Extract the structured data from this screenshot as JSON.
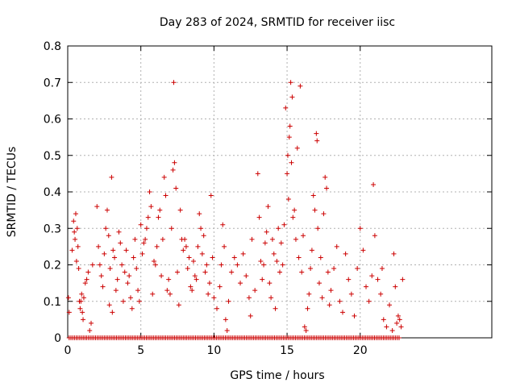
{
  "chart_data": {
    "type": "scatter",
    "title": "Day 283 of 2024, SRMTID for receiver iisc",
    "xlabel": "GPS time / hours",
    "ylabel": "SRMTID / TECUs",
    "xlim": [
      0,
      29
    ],
    "ylim": [
      0,
      0.8
    ],
    "xticks": [
      0,
      5,
      10,
      15,
      20
    ],
    "yticks": [
      0,
      0.1,
      0.2,
      0.3,
      0.4,
      0.5,
      0.6,
      0.7,
      0.8
    ],
    "xtick_labels": [
      "0",
      "5",
      "10",
      "15",
      "20"
    ],
    "ytick_labels": [
      "0",
      "0.1",
      "0.2",
      "0.3",
      "0.4",
      "0.5",
      "0.6",
      "0.7",
      "0.8"
    ],
    "grid": true,
    "marker": "+",
    "series_color": "#cc0000",
    "series": [
      {
        "name": "SRMTID",
        "points": [
          [
            0.05,
            0.11
          ],
          [
            0.1,
            0.07
          ],
          [
            0.3,
            0.24
          ],
          [
            0.4,
            0.32
          ],
          [
            0.45,
            0.29
          ],
          [
            0.5,
            0.27
          ],
          [
            0.55,
            0.34
          ],
          [
            0.6,
            0.21
          ],
          [
            0.65,
            0.3
          ],
          [
            0.7,
            0.25
          ],
          [
            0.75,
            0.19
          ],
          [
            0.8,
            0.1
          ],
          [
            0.85,
            0.08
          ],
          [
            0.9,
            0.1
          ],
          [
            0.95,
            0.12
          ],
          [
            1.0,
            0.07
          ],
          [
            1.05,
            0.05
          ],
          [
            1.1,
            0.11
          ],
          [
            1.2,
            0.15
          ],
          [
            1.3,
            0.16
          ],
          [
            1.4,
            0.18
          ],
          [
            1.5,
            0.02
          ],
          [
            1.6,
            0.04
          ],
          [
            1.7,
            0.2
          ],
          [
            2.0,
            0.36
          ],
          [
            2.1,
            0.25
          ],
          [
            2.2,
            0.2
          ],
          [
            2.3,
            0.17
          ],
          [
            2.4,
            0.14
          ],
          [
            2.5,
            0.23
          ],
          [
            2.6,
            0.3
          ],
          [
            2.7,
            0.35
          ],
          [
            2.8,
            0.28
          ],
          [
            2.85,
            0.09
          ],
          [
            2.9,
            0.19
          ],
          [
            3.0,
            0.44
          ],
          [
            3.05,
            0.07
          ],
          [
            3.1,
            0.24
          ],
          [
            3.2,
            0.22
          ],
          [
            3.3,
            0.13
          ],
          [
            3.4,
            0.16
          ],
          [
            3.5,
            0.29
          ],
          [
            3.6,
            0.26
          ],
          [
            3.7,
            0.2
          ],
          [
            3.8,
            0.1
          ],
          [
            3.9,
            0.18
          ],
          [
            4.0,
            0.24
          ],
          [
            4.1,
            0.15
          ],
          [
            4.2,
            0.17
          ],
          [
            4.3,
            0.11
          ],
          [
            4.4,
            0.08
          ],
          [
            4.5,
            0.22
          ],
          [
            4.6,
            0.27
          ],
          [
            4.7,
            0.19
          ],
          [
            4.8,
            0.13
          ],
          [
            4.9,
            0.1
          ],
          [
            5.0,
            0.31
          ],
          [
            5.1,
            0.23
          ],
          [
            5.2,
            0.26
          ],
          [
            5.3,
            0.27
          ],
          [
            5.4,
            0.3
          ],
          [
            5.5,
            0.33
          ],
          [
            5.6,
            0.4
          ],
          [
            5.7,
            0.36
          ],
          [
            5.8,
            0.12
          ],
          [
            5.9,
            0.21
          ],
          [
            6.0,
            0.2
          ],
          [
            6.1,
            0.25
          ],
          [
            6.2,
            0.33
          ],
          [
            6.3,
            0.35
          ],
          [
            6.4,
            0.17
          ],
          [
            6.5,
            0.27
          ],
          [
            6.6,
            0.44
          ],
          [
            6.7,
            0.39
          ],
          [
            6.8,
            0.13
          ],
          [
            6.9,
            0.16
          ],
          [
            7.0,
            0.12
          ],
          [
            7.1,
            0.3
          ],
          [
            7.2,
            0.46
          ],
          [
            7.25,
            0.7
          ],
          [
            7.3,
            0.48
          ],
          [
            7.4,
            0.41
          ],
          [
            7.5,
            0.18
          ],
          [
            7.6,
            0.09
          ],
          [
            7.7,
            0.35
          ],
          [
            7.8,
            0.27
          ],
          [
            7.9,
            0.24
          ],
          [
            8.0,
            0.27
          ],
          [
            8.1,
            0.25
          ],
          [
            8.2,
            0.19
          ],
          [
            8.3,
            0.22
          ],
          [
            8.4,
            0.14
          ],
          [
            8.5,
            0.13
          ],
          [
            8.6,
            0.21
          ],
          [
            8.7,
            0.17
          ],
          [
            8.8,
            0.16
          ],
          [
            8.9,
            0.25
          ],
          [
            9.0,
            0.34
          ],
          [
            9.1,
            0.3
          ],
          [
            9.2,
            0.23
          ],
          [
            9.3,
            0.28
          ],
          [
            9.4,
            0.18
          ],
          [
            9.5,
            0.2
          ],
          [
            9.6,
            0.12
          ],
          [
            9.7,
            0.15
          ],
          [
            9.8,
            0.39
          ],
          [
            9.9,
            0.22
          ],
          [
            10.0,
            0.11
          ],
          [
            10.2,
            0.08
          ],
          [
            10.4,
            0.14
          ],
          [
            10.5,
            0.2
          ],
          [
            10.6,
            0.31
          ],
          [
            10.7,
            0.25
          ],
          [
            10.8,
            0.05
          ],
          [
            10.9,
            0.02
          ],
          [
            11.0,
            0.1
          ],
          [
            11.2,
            0.18
          ],
          [
            11.4,
            0.22
          ],
          [
            11.6,
            0.2
          ],
          [
            11.8,
            0.15
          ],
          [
            12.0,
            0.23
          ],
          [
            12.2,
            0.17
          ],
          [
            12.4,
            0.11
          ],
          [
            12.5,
            0.06
          ],
          [
            12.6,
            0.27
          ],
          [
            12.8,
            0.13
          ],
          [
            13.0,
            0.45
          ],
          [
            13.1,
            0.33
          ],
          [
            13.2,
            0.21
          ],
          [
            13.3,
            0.16
          ],
          [
            13.4,
            0.2
          ],
          [
            13.5,
            0.26
          ],
          [
            13.6,
            0.29
          ],
          [
            13.7,
            0.36
          ],
          [
            13.8,
            0.15
          ],
          [
            13.9,
            0.11
          ],
          [
            14.0,
            0.27
          ],
          [
            14.1,
            0.23
          ],
          [
            14.2,
            0.08
          ],
          [
            14.3,
            0.21
          ],
          [
            14.4,
            0.3
          ],
          [
            14.5,
            0.18
          ],
          [
            14.6,
            0.26
          ],
          [
            14.7,
            0.2
          ],
          [
            14.8,
            0.31
          ],
          [
            14.9,
            0.63
          ],
          [
            15.0,
            0.45
          ],
          [
            15.05,
            0.5
          ],
          [
            15.1,
            0.38
          ],
          [
            15.15,
            0.55
          ],
          [
            15.2,
            0.58
          ],
          [
            15.25,
            0.7
          ],
          [
            15.3,
            0.48
          ],
          [
            15.35,
            0.66
          ],
          [
            15.4,
            0.33
          ],
          [
            15.5,
            0.35
          ],
          [
            15.6,
            0.27
          ],
          [
            15.7,
            0.52
          ],
          [
            15.8,
            0.22
          ],
          [
            15.9,
            0.69
          ],
          [
            16.0,
            0.18
          ],
          [
            16.1,
            0.28
          ],
          [
            16.2,
            0.03
          ],
          [
            16.3,
            0.02
          ],
          [
            16.4,
            0.08
          ],
          [
            16.5,
            0.12
          ],
          [
            16.6,
            0.19
          ],
          [
            16.7,
            0.24
          ],
          [
            16.8,
            0.39
          ],
          [
            16.9,
            0.35
          ],
          [
            17.0,
            0.56
          ],
          [
            17.05,
            0.54
          ],
          [
            17.1,
            0.3
          ],
          [
            17.2,
            0.15
          ],
          [
            17.3,
            0.22
          ],
          [
            17.4,
            0.11
          ],
          [
            17.5,
            0.34
          ],
          [
            17.6,
            0.44
          ],
          [
            17.7,
            0.41
          ],
          [
            17.8,
            0.18
          ],
          [
            17.9,
            0.09
          ],
          [
            18.0,
            0.13
          ],
          [
            18.2,
            0.19
          ],
          [
            18.4,
            0.25
          ],
          [
            18.6,
            0.1
          ],
          [
            18.8,
            0.07
          ],
          [
            19.0,
            0.23
          ],
          [
            19.2,
            0.16
          ],
          [
            19.4,
            0.12
          ],
          [
            19.6,
            0.06
          ],
          [
            19.8,
            0.19
          ],
          [
            20.0,
            0.3
          ],
          [
            20.2,
            0.24
          ],
          [
            20.4,
            0.14
          ],
          [
            20.6,
            0.1
          ],
          [
            20.8,
            0.17
          ],
          [
            20.9,
            0.42
          ],
          [
            21.0,
            0.28
          ],
          [
            21.2,
            0.16
          ],
          [
            21.4,
            0.12
          ],
          [
            21.5,
            0.19
          ],
          [
            21.6,
            0.05
          ],
          [
            21.8,
            0.03
          ],
          [
            22.0,
            0.09
          ],
          [
            22.2,
            0.02
          ],
          [
            22.3,
            0.23
          ],
          [
            22.4,
            0.14
          ],
          [
            22.5,
            0.04
          ],
          [
            22.6,
            0.06
          ],
          [
            22.7,
            0.05
          ],
          [
            22.8,
            0.03
          ],
          [
            22.9,
            0.16
          ]
        ],
        "zero_band_x": [
          0.1,
          22.7
        ]
      }
    ]
  }
}
